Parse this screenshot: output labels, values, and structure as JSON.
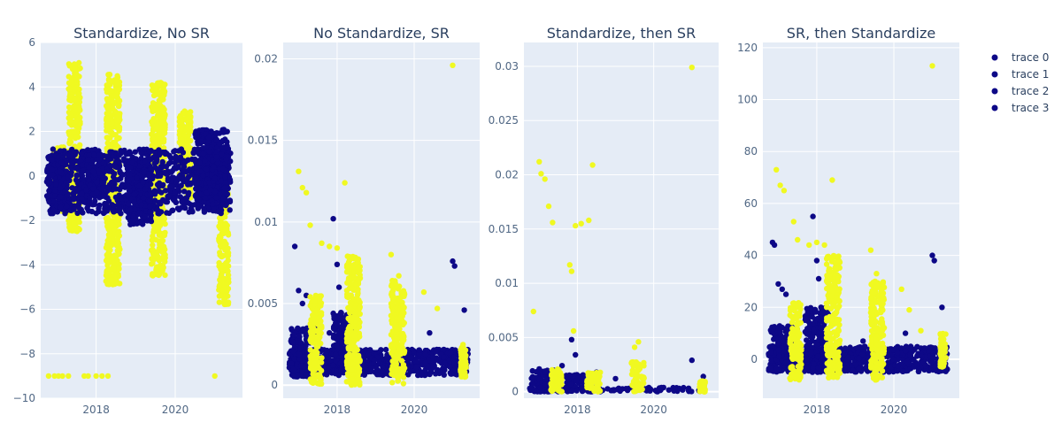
{
  "colors": {
    "plot_bg": "#e5ecf6",
    "grid": "#ffffff",
    "trace_dark": "#0d0887",
    "trace_light": "#f0f921",
    "text": "#2a3f5f",
    "tick": "#506784"
  },
  "legend": {
    "placement": "top-right",
    "items": [
      "trace 0",
      "trace 1",
      "trace 2",
      "trace 3"
    ]
  },
  "chart_data": [
    {
      "type": "scatter",
      "title": "Standardize, No SR",
      "xlabel": "",
      "ylabel": "",
      "xlim": [
        2016.6,
        2021.7
      ],
      "ylim": [
        -10,
        6
      ],
      "yticks": [
        -10,
        -8,
        -6,
        -4,
        -2,
        0,
        2,
        4,
        6
      ],
      "ytick_labels": [
        "−10",
        "−8",
        "−6",
        "−4",
        "−2",
        "0",
        "2",
        "4",
        "6"
      ],
      "xticks": [
        2018,
        2020
      ],
      "xtick_labels": [
        "2018",
        "2020"
      ],
      "grid": true,
      "series": [
        {
          "colorKey": "trace_light",
          "clusters": [
            [
              2016.9,
              2017.25,
              -1.6,
              1.3
            ],
            [
              2017.3,
              2017.6,
              -2.5,
              5.1
            ],
            [
              2018.25,
              2018.6,
              -4.9,
              4.6
            ],
            [
              2019.4,
              2019.75,
              -4.5,
              4.2
            ],
            [
              2020.1,
              2020.4,
              -1.0,
              3.0
            ],
            [
              2021.1,
              2021.35,
              -5.8,
              1.0
            ]
          ],
          "points": [
            [
              2016.8,
              -9
            ],
            [
              2016.95,
              -9
            ],
            [
              2017.05,
              -9
            ],
            [
              2017.15,
              -9
            ],
            [
              2017.3,
              -9
            ],
            [
              2017.7,
              -9
            ],
            [
              2017.8,
              -9
            ],
            [
              2018.0,
              -9
            ],
            [
              2018.15,
              -9
            ],
            [
              2018.3,
              -9
            ],
            [
              2021.0,
              -9
            ]
          ]
        },
        {
          "colorKey": "trace_dark",
          "clusters": [
            [
              2016.75,
              2021.4,
              -1.7,
              1.2
            ],
            [
              2016.8,
              2017.3,
              -1.5,
              0.9
            ],
            [
              2017.6,
              2018.2,
              -1.0,
              1.0
            ],
            [
              2018.8,
              2019.4,
              -2.2,
              0.8
            ],
            [
              2020.5,
              2021.35,
              -1.3,
              2.1
            ]
          ],
          "points": []
        }
      ]
    },
    {
      "type": "scatter",
      "title": "No Standardize, SR",
      "xlabel": "",
      "ylabel": "",
      "xlim": [
        2016.6,
        2021.7
      ],
      "ylim": [
        -0.0008,
        0.021
      ],
      "yticks": [
        0,
        0.005,
        0.01,
        0.015,
        0.02
      ],
      "ytick_labels": [
        "0",
        "0.005",
        "0.01",
        "0.015",
        "0.02"
      ],
      "xticks": [
        2018,
        2020
      ],
      "xtick_labels": [
        "2018",
        "2020"
      ],
      "grid": true,
      "series": [
        {
          "colorKey": "trace_dark",
          "clusters": [
            [
              2016.75,
              2021.4,
              0.0006,
              0.0022
            ],
            [
              2016.8,
              2017.5,
              0.0005,
              0.0035
            ],
            [
              2017.9,
              2018.4,
              0.0008,
              0.0045
            ]
          ],
          "points": [
            [
              2016.9,
              0.0085
            ],
            [
              2017.0,
              0.0058
            ],
            [
              2017.1,
              0.005
            ],
            [
              2017.2,
              0.0055
            ],
            [
              2017.9,
              0.0102
            ],
            [
              2018.0,
              0.0074
            ],
            [
              2018.05,
              0.006
            ],
            [
              2017.8,
              0.0032
            ],
            [
              2020.4,
              0.0032
            ],
            [
              2021.0,
              0.0076
            ],
            [
              2021.05,
              0.0073
            ],
            [
              2021.3,
              0.0046
            ]
          ]
        },
        {
          "colorKey": "trace_light",
          "clusters": [
            [
              2017.3,
              2017.6,
              0.0,
              0.0055
            ],
            [
              2018.25,
              2018.6,
              0.0,
              0.008
            ],
            [
              2019.4,
              2019.75,
              0.0,
              0.0065
            ],
            [
              2021.2,
              2021.35,
              0.0005,
              0.0025
            ]
          ],
          "points": [
            [
              2017.0,
              0.0131
            ],
            [
              2017.1,
              0.0121
            ],
            [
              2017.2,
              0.0118
            ],
            [
              2017.3,
              0.0098
            ],
            [
              2018.2,
              0.0124
            ],
            [
              2017.6,
              0.0087
            ],
            [
              2017.8,
              0.0085
            ],
            [
              2018.0,
              0.0084
            ],
            [
              2019.4,
              0.008
            ],
            [
              2019.6,
              0.0067
            ],
            [
              2020.25,
              0.0057
            ],
            [
              2020.6,
              0.0047
            ],
            [
              2021.0,
              0.0196
            ]
          ]
        }
      ]
    },
    {
      "type": "scatter",
      "title": "Standardize, then SR",
      "xlabel": "",
      "ylabel": "",
      "xlim": [
        2016.6,
        2021.7
      ],
      "ylim": [
        -0.0006,
        0.0322
      ],
      "yticks": [
        0,
        0.005,
        0.01,
        0.015,
        0.02,
        0.025,
        0.03
      ],
      "ytick_labels": [
        "0",
        "0.005",
        "0.01",
        "0.015",
        "0.02",
        "0.025",
        "0.03"
      ],
      "xticks": [
        2018,
        2020
      ],
      "xtick_labels": [
        "2018",
        "2020"
      ],
      "grid": true,
      "series": [
        {
          "colorKey": "trace_dark",
          "clusters": [
            [
              2016.75,
              2021.4,
              0.0,
              0.0004
            ],
            [
              2016.8,
              2017.5,
              0.0,
              0.002
            ],
            [
              2017.7,
              2018.2,
              0.0,
              0.0016
            ]
          ],
          "points": [
            [
              2017.0,
              0.0021
            ],
            [
              2017.15,
              0.0018
            ],
            [
              2017.85,
              0.0048
            ],
            [
              2017.95,
              0.0034
            ],
            [
              2017.6,
              0.0024
            ],
            [
              2018.5,
              0.0018
            ],
            [
              2019.0,
              0.0012
            ],
            [
              2021.0,
              0.0029
            ],
            [
              2021.3,
              0.0014
            ]
          ]
        },
        {
          "colorKey": "trace_light",
          "clusters": [
            [
              2017.3,
              2017.6,
              0.0,
              0.0022
            ],
            [
              2018.25,
              2018.6,
              0.0,
              0.0018
            ],
            [
              2019.4,
              2019.75,
              0.0,
              0.0028
            ],
            [
              2021.2,
              2021.35,
              0.0,
              0.001
            ]
          ],
          "points": [
            [
              2016.85,
              0.0074
            ],
            [
              2017.0,
              0.0212
            ],
            [
              2017.05,
              0.0201
            ],
            [
              2017.15,
              0.0196
            ],
            [
              2017.25,
              0.0171
            ],
            [
              2017.35,
              0.0156
            ],
            [
              2017.8,
              0.0117
            ],
            [
              2017.85,
              0.0111
            ],
            [
              2017.95,
              0.0153
            ],
            [
              2018.1,
              0.0155
            ],
            [
              2018.3,
              0.0158
            ],
            [
              2018.4,
              0.0209
            ],
            [
              2017.9,
              0.0056
            ],
            [
              2019.5,
              0.0041
            ],
            [
              2019.6,
              0.0046
            ],
            [
              2021.0,
              0.0299
            ]
          ]
        }
      ]
    },
    {
      "type": "scatter",
      "title": "SR, then Standardize",
      "xlabel": "",
      "ylabel": "",
      "xlim": [
        2016.6,
        2021.7
      ],
      "ylim": [
        -15,
        122
      ],
      "yticks": [
        0,
        20,
        40,
        60,
        80,
        100,
        120
      ],
      "ytick_labels": [
        "0",
        "20",
        "40",
        "60",
        "80",
        "100",
        "120"
      ],
      "xticks": [
        2018,
        2020
      ],
      "xtick_labels": [
        "2018",
        "2020"
      ],
      "grid": true,
      "series": [
        {
          "colorKey": "trace_dark",
          "clusters": [
            [
              2016.75,
              2021.4,
              -5,
              5
            ],
            [
              2016.8,
              2017.5,
              -4,
              13
            ],
            [
              2017.7,
              2018.3,
              -4,
              20
            ]
          ],
          "points": [
            [
              2016.85,
              45
            ],
            [
              2016.9,
              44
            ],
            [
              2017.0,
              29
            ],
            [
              2017.1,
              27
            ],
            [
              2017.2,
              25
            ],
            [
              2017.9,
              55
            ],
            [
              2018.0,
              38
            ],
            [
              2018.05,
              31
            ],
            [
              2018.15,
              18
            ],
            [
              2020.3,
              10
            ],
            [
              2021.0,
              40
            ],
            [
              2021.05,
              38
            ],
            [
              2021.25,
              20
            ],
            [
              2019.2,
              7
            ]
          ]
        },
        {
          "colorKey": "trace_light",
          "clusters": [
            [
              2017.3,
              2017.6,
              -8,
              22
            ],
            [
              2018.25,
              2018.6,
              -8,
              40
            ],
            [
              2019.4,
              2019.75,
              -8,
              30
            ],
            [
              2021.2,
              2021.35,
              -3,
              10
            ]
          ],
          "points": [
            [
              2016.95,
              73
            ],
            [
              2017.05,
              67
            ],
            [
              2017.15,
              65
            ],
            [
              2017.4,
              53
            ],
            [
              2017.5,
              46
            ],
            [
              2017.8,
              44
            ],
            [
              2018.0,
              45
            ],
            [
              2018.2,
              44
            ],
            [
              2018.4,
              69
            ],
            [
              2019.4,
              42
            ],
            [
              2019.55,
              33
            ],
            [
              2020.2,
              27
            ],
            [
              2020.4,
              19
            ],
            [
              2020.7,
              11
            ],
            [
              2021.0,
              113
            ]
          ]
        }
      ]
    }
  ]
}
